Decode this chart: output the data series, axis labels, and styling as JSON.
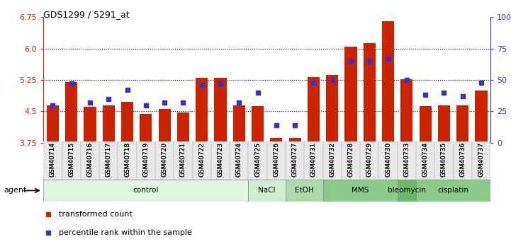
{
  "title": "GDS1299 / 5291_at",
  "samples": [
    "GSM40714",
    "GSM40715",
    "GSM40716",
    "GSM40717",
    "GSM40718",
    "GSM40719",
    "GSM40720",
    "GSM40721",
    "GSM40722",
    "GSM40723",
    "GSM40724",
    "GSM40725",
    "GSM40726",
    "GSM40727",
    "GSM40731",
    "GSM40732",
    "GSM40728",
    "GSM40729",
    "GSM40730",
    "GSM40733",
    "GSM40734",
    "GSM40735",
    "GSM40736",
    "GSM40737"
  ],
  "bar_values": [
    4.65,
    5.2,
    4.6,
    4.65,
    4.72,
    4.44,
    4.55,
    4.48,
    5.3,
    5.3,
    4.65,
    4.62,
    3.86,
    3.87,
    5.32,
    5.36,
    6.05,
    6.12,
    6.65,
    5.27,
    4.62,
    4.65,
    4.65,
    5.0
  ],
  "percentile_values": [
    30,
    47,
    32,
    35,
    42,
    30,
    32,
    32,
    46,
    47,
    32,
    40,
    14,
    14,
    48,
    50,
    65,
    65,
    67,
    50,
    38,
    40,
    37,
    48
  ],
  "ylim_left": [
    3.75,
    6.75
  ],
  "ylim_right": [
    0,
    100
  ],
  "yticks_left": [
    3.75,
    4.5,
    5.25,
    6.0,
    6.75
  ],
  "yticks_right": [
    0,
    25,
    50,
    75,
    100
  ],
  "ytick_labels_right": [
    "0",
    "25",
    "50",
    "75",
    "100%"
  ],
  "hlines": [
    4.5,
    5.25,
    6.0
  ],
  "bar_color": "#cc2200",
  "percentile_color": "#3333cc",
  "bg_color": "#ffffff",
  "plot_bg": "#ffffff",
  "agent_groups": [
    {
      "label": "control",
      "start": 0,
      "end": 10,
      "color": "#e0f5e0"
    },
    {
      "label": "NaCl",
      "start": 11,
      "end": 12,
      "color": "#d0efd0"
    },
    {
      "label": "EtOH",
      "start": 13,
      "end": 14,
      "color": "#aadaaa"
    },
    {
      "label": "MMS",
      "start": 15,
      "end": 18,
      "color": "#88cc88"
    },
    {
      "label": "bleomycin",
      "start": 19,
      "end": 19,
      "color": "#66bb66"
    },
    {
      "label": "cisplatin",
      "start": 20,
      "end": 23,
      "color": "#88cc88"
    }
  ],
  "legend_bar_label": "transformed count",
  "legend_pct_label": "percentile rank within the sample",
  "agent_label": "agent"
}
